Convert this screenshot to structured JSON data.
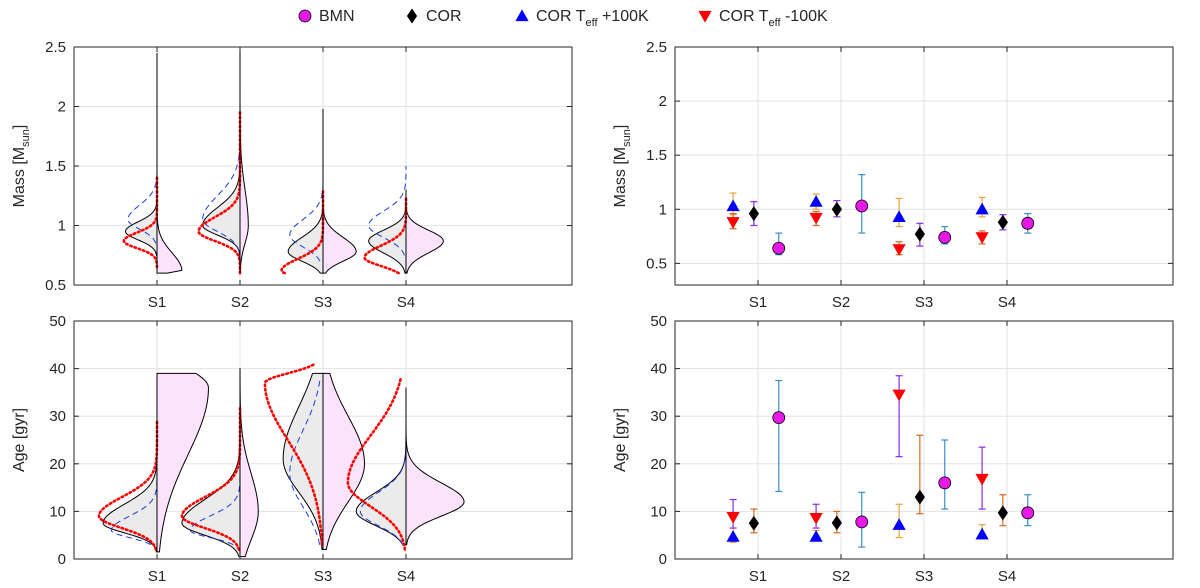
{
  "legend": {
    "items": [
      {
        "label": "BMN",
        "label_sub": "",
        "label_tail": "",
        "marker": "circle",
        "color": "#e619e6"
      },
      {
        "label": "COR",
        "label_sub": "",
        "label_tail": "",
        "marker": "diamond",
        "color": "#000000"
      },
      {
        "label": "COR T",
        "label_sub": "eff",
        "label_tail": " +100K",
        "marker": "triangle-up",
        "color": "#0000ff"
      },
      {
        "label": "COR T",
        "label_sub": "eff",
        "label_tail": " -100K",
        "marker": "triangle-down",
        "color": "#ff0000"
      }
    ]
  },
  "chart_data": [
    {
      "id": "mass-violin",
      "type": "violin",
      "ylabel": "Mass [M",
      "ylabel_sub": "sun",
      "ylabel_tail": "]",
      "ylim": [
        0.5,
        2.5
      ],
      "yticks": [
        0.5,
        1,
        1.5,
        2,
        2.5
      ],
      "xlim": [
        0,
        6
      ],
      "categories": [
        "S1",
        "S2",
        "S3",
        "S4"
      ],
      "violins": [
        {
          "right": {
            "ymin": 0.6,
            "ymax": 2.45,
            "peak": 0.62,
            "width": 0.3,
            "sigma_lo": 0.015,
            "sigma_hi": 0.15
          },
          "left_cor": {
            "ymin": 0.75,
            "ymax": 1.4,
            "peak": 0.95,
            "width": 0.38,
            "sigma_lo": 0.07,
            "sigma_hi": 0.08
          },
          "left_plus": {
            "ymin": 0.85,
            "ymax": 1.42,
            "peak": 1.05,
            "width": 0.35,
            "sigma_lo": 0.08,
            "sigma_hi": 0.12
          },
          "left_minus": {
            "ymin": 0.65,
            "ymax": 1.4,
            "peak": 0.87,
            "width": 0.4,
            "sigma_lo": 0.06,
            "sigma_hi": 0.07
          }
        },
        {
          "right": {
            "ymin": 0.6,
            "ymax": 2.5,
            "peak": 1.0,
            "width": 0.1,
            "sigma_lo": 0.15,
            "sigma_hi": 0.3
          },
          "left_cor": {
            "ymin": 0.6,
            "ymax": 2.5,
            "peak": 1.0,
            "width": 0.45,
            "sigma_lo": 0.08,
            "sigma_hi": 0.15
          },
          "left_plus": {
            "ymin": 0.7,
            "ymax": 2.0,
            "peak": 1.05,
            "width": 0.45,
            "sigma_lo": 0.1,
            "sigma_hi": 0.2
          },
          "left_minus": {
            "ymin": 0.6,
            "ymax": 1.95,
            "peak": 0.95,
            "width": 0.5,
            "sigma_lo": 0.08,
            "sigma_hi": 0.12
          }
        },
        {
          "right": {
            "ymin": 0.6,
            "ymax": 1.4,
            "peak": 0.78,
            "width": 0.4,
            "sigma_lo": 0.08,
            "sigma_hi": 0.12
          },
          "left_cor": {
            "ymin": 0.6,
            "ymax": 1.98,
            "peak": 0.78,
            "width": 0.42,
            "sigma_lo": 0.08,
            "sigma_hi": 0.12
          },
          "left_plus": {
            "ymin": 0.7,
            "ymax": 1.32,
            "peak": 0.92,
            "width": 0.4,
            "sigma_lo": 0.1,
            "sigma_hi": 0.13
          },
          "left_minus": {
            "ymin": 0.6,
            "ymax": 1.3,
            "peak": 0.62,
            "width": 0.5,
            "sigma_lo": 0.05,
            "sigma_hi": 0.1
          }
        },
        {
          "right": {
            "ymin": 0.6,
            "ymax": 1.3,
            "peak": 0.87,
            "width": 0.45,
            "sigma_lo": 0.1,
            "sigma_hi": 0.09
          },
          "left_cor": {
            "ymin": 0.6,
            "ymax": 1.3,
            "peak": 0.87,
            "width": 0.45,
            "sigma_lo": 0.1,
            "sigma_hi": 0.09
          },
          "left_plus": {
            "ymin": 0.75,
            "ymax": 1.5,
            "peak": 1.0,
            "width": 0.45,
            "sigma_lo": 0.1,
            "sigma_hi": 0.12
          },
          "left_minus": {
            "ymin": 0.6,
            "ymax": 1.25,
            "peak": 0.73,
            "width": 0.5,
            "sigma_lo": 0.07,
            "sigma_hi": 0.1
          }
        }
      ]
    },
    {
      "id": "mass-errorbar",
      "type": "errorbar",
      "ylabel": "Mass [M",
      "ylabel_sub": "sun",
      "ylabel_tail": "]",
      "ylim": [
        0.3,
        2.5
      ],
      "yticks": [
        0.5,
        1,
        1.5,
        2,
        2.5
      ],
      "xlim": [
        0,
        6
      ],
      "categories": [
        "S1",
        "S2",
        "S3",
        "S4"
      ],
      "series": [
        {
          "name": "BMN",
          "marker": "circle",
          "color": "#e619e6",
          "err_color": "#3a8fc4",
          "offset": 0.25,
          "values": [
            0.64,
            1.03,
            0.74,
            0.87
          ],
          "lo": [
            0.58,
            0.78,
            0.68,
            0.78
          ],
          "hi": [
            0.78,
            1.32,
            0.84,
            0.96
          ]
        },
        {
          "name": "COR",
          "marker": "diamond",
          "color": "#000000",
          "err_color": "#8a2be2",
          "offset": -0.05,
          "values": [
            0.96,
            1.0,
            0.77,
            0.88
          ],
          "lo": [
            0.85,
            0.93,
            0.66,
            0.81
          ],
          "hi": [
            1.07,
            1.08,
            0.87,
            0.95
          ]
        },
        {
          "name": "COR Teff +100K",
          "marker": "triangle-up",
          "color": "#0000ff",
          "err_color": "#e8a33d",
          "offset": -0.3,
          "values": [
            1.03,
            1.07,
            0.93,
            1.0
          ],
          "lo": [
            0.95,
            1.0,
            0.84,
            0.93
          ],
          "hi": [
            1.15,
            1.14,
            1.1,
            1.11
          ]
        },
        {
          "name": "COR Teff -100K",
          "marker": "triangle-down",
          "color": "#ff0000",
          "err_color": "#d2691e",
          "offset": -0.3,
          "values": [
            0.88,
            0.92,
            0.63,
            0.74
          ],
          "lo": [
            0.82,
            0.85,
            0.58,
            0.68
          ],
          "hi": [
            0.96,
            0.98,
            0.7,
            0.8
          ]
        }
      ]
    },
    {
      "id": "age-violin",
      "type": "violin",
      "ylabel": "Age [gyr]",
      "ylabel_sub": "",
      "ylabel_tail": "",
      "ylim": [
        0,
        50
      ],
      "yticks": [
        0,
        10,
        20,
        30,
        40,
        50
      ],
      "xlim": [
        0,
        6
      ],
      "categories": [
        "S1",
        "S2",
        "S3",
        "S4"
      ],
      "violins": [
        {
          "right": {
            "ymin": 1.5,
            "ymax": 39,
            "peak": 36,
            "width": 0.62,
            "sigma_lo": 14,
            "sigma_hi": 4
          },
          "left_cor": {
            "ymin": 1.5,
            "ymax": 25,
            "peak": 7.5,
            "width": 0.65,
            "sigma_lo": 2.0,
            "sigma_hi": 4
          },
          "left_plus": {
            "ymin": 3,
            "ymax": 20,
            "peak": 6,
            "width": 0.55,
            "sigma_lo": 1.5,
            "sigma_hi": 3
          },
          "left_minus": {
            "ymin": 2,
            "ymax": 29,
            "peak": 9,
            "width": 0.7,
            "sigma_lo": 2.5,
            "sigma_hi": 4
          }
        },
        {
          "right": {
            "ymin": 0.5,
            "ymax": 40,
            "peak": 10,
            "width": 0.22,
            "sigma_lo": 6,
            "sigma_hi": 8
          },
          "left_cor": {
            "ymin": 0.5,
            "ymax": 40,
            "peak": 7.5,
            "width": 0.7,
            "sigma_lo": 2.5,
            "sigma_hi": 5
          },
          "left_plus": {
            "ymin": 3,
            "ymax": 25,
            "peak": 6,
            "width": 0.6,
            "sigma_lo": 1.5,
            "sigma_hi": 3
          },
          "left_minus": {
            "ymin": 2,
            "ymax": 32,
            "peak": 9,
            "width": 0.7,
            "sigma_lo": 2.5,
            "sigma_hi": 4
          }
        },
        {
          "right": {
            "ymin": 2,
            "ymax": 39,
            "peak": 20,
            "width": 0.5,
            "sigma_lo": 8,
            "sigma_hi": 10
          },
          "left_cor": {
            "ymin": 2,
            "ymax": 39,
            "peak": 21,
            "width": 0.48,
            "sigma_lo": 7,
            "sigma_hi": 11
          },
          "left_plus": {
            "ymin": 3,
            "ymax": 38,
            "peak": 18,
            "width": 0.4,
            "sigma_lo": 7,
            "sigma_hi": 9
          },
          "left_minus": {
            "ymin": 3,
            "ymax": 41,
            "peak": 37,
            "width": 0.7,
            "sigma_lo": 12,
            "sigma_hi": 2
          }
        },
        {
          "right": {
            "ymin": 3,
            "ymax": 36,
            "peak": 12,
            "width": 0.7,
            "sigma_lo": 3,
            "sigma_hi": 4
          },
          "left_cor": {
            "ymin": 3,
            "ymax": 36,
            "peak": 10,
            "width": 0.6,
            "sigma_lo": 3,
            "sigma_hi": 4
          },
          "left_plus": {
            "ymin": 3,
            "ymax": 28,
            "peak": 10,
            "width": 0.55,
            "sigma_lo": 3,
            "sigma_hi": 4
          },
          "left_minus": {
            "ymin": 2,
            "ymax": 38,
            "peak": 16,
            "width": 0.7,
            "sigma_lo": 5,
            "sigma_hi": 10
          }
        }
      ]
    },
    {
      "id": "age-errorbar",
      "type": "errorbar",
      "ylabel": "Age [gyr]",
      "ylabel_sub": "",
      "ylabel_tail": "",
      "ylim": [
        0,
        50
      ],
      "yticks": [
        0,
        10,
        20,
        30,
        40,
        50
      ],
      "xlim": [
        0,
        6
      ],
      "categories": [
        "S1",
        "S2",
        "S3",
        "S4"
      ],
      "series": [
        {
          "name": "BMN",
          "marker": "circle",
          "color": "#e619e6",
          "err_color": "#3a8fc4",
          "offset": 0.25,
          "values": [
            29.7,
            7.8,
            16.0,
            9.7
          ],
          "lo": [
            14.2,
            2.5,
            10.5,
            7.0
          ],
          "hi": [
            37.5,
            14.0,
            25.0,
            13.5
          ]
        },
        {
          "name": "COR",
          "marker": "diamond",
          "color": "#000000",
          "err_color": "#d2691e",
          "offset": -0.05,
          "values": [
            7.5,
            7.6,
            13.0,
            9.7
          ],
          "lo": [
            5.5,
            5.5,
            9.5,
            7.0
          ],
          "hi": [
            10.5,
            10.0,
            26.0,
            13.5
          ]
        },
        {
          "name": "COR Teff +100K",
          "marker": "triangle-up",
          "color": "#0000ff",
          "err_color": "#e8a33d",
          "offset": -0.3,
          "values": [
            4.7,
            4.7,
            7.2,
            5.2
          ],
          "lo": [
            3.5,
            3.8,
            4.5,
            4.2
          ],
          "hi": [
            6.5,
            6.0,
            11.5,
            7.2
          ]
        },
        {
          "name": "COR Teff -100K",
          "marker": "triangle-down",
          "color": "#ff0000",
          "err_color": "#8a2be2",
          "offset": -0.3,
          "values": [
            8.8,
            8.6,
            34.5,
            16.8
          ],
          "lo": [
            6.5,
            6.5,
            21.5,
            10.5
          ],
          "hi": [
            12.5,
            11.5,
            38.5,
            23.5
          ]
        }
      ]
    }
  ]
}
